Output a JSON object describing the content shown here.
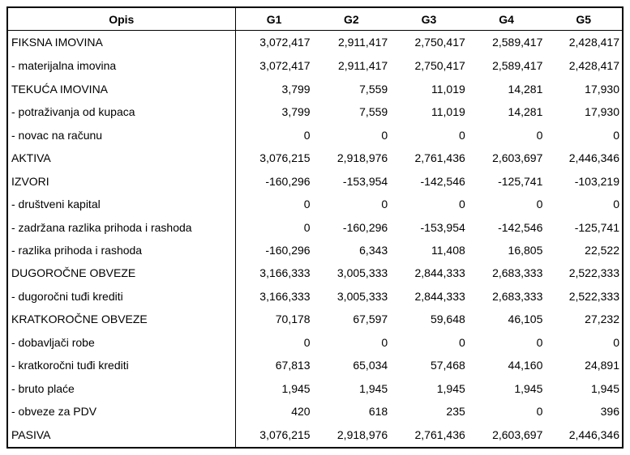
{
  "colors": {
    "background": "#ffffff",
    "border": "#000000",
    "text": "#000000"
  },
  "table": {
    "columns": [
      "Opis",
      "G1",
      "G2",
      "G3",
      "G4",
      "G5"
    ],
    "rows": [
      {
        "label": "FIKSNA IMOVINA",
        "values": [
          "3,072,417",
          "2,911,417",
          "2,750,417",
          "2,589,417",
          "2,428,417"
        ]
      },
      {
        "label": "- materijalna imovina",
        "values": [
          "3,072,417",
          "2,911,417",
          "2,750,417",
          "2,589,417",
          "2,428,417"
        ]
      },
      {
        "label": "TEKUĆA IMOVINA",
        "values": [
          "3,799",
          "7,559",
          "11,019",
          "14,281",
          "17,930"
        ]
      },
      {
        "label": "- potraživanja od kupaca",
        "values": [
          "3,799",
          "7,559",
          "11,019",
          "14,281",
          "17,930"
        ]
      },
      {
        "label": "- novac na računu",
        "values": [
          "0",
          "0",
          "0",
          "0",
          "0"
        ]
      },
      {
        "label": "AKTIVA",
        "values": [
          "3,076,215",
          "2,918,976",
          "2,761,436",
          "2,603,697",
          "2,446,346"
        ]
      },
      {
        "label": "IZVORI",
        "values": [
          "-160,296",
          "-153,954",
          "-142,546",
          "-125,741",
          "-103,219"
        ]
      },
      {
        "label": "- društveni kapital",
        "values": [
          "0",
          "0",
          "0",
          "0",
          "0"
        ]
      },
      {
        "label": "- zadržana razlika prihoda i rashoda",
        "values": [
          "0",
          "-160,296",
          "-153,954",
          "-142,546",
          "-125,741"
        ]
      },
      {
        "label": "- razlika prihoda i rashoda",
        "values": [
          "-160,296",
          "6,343",
          "11,408",
          "16,805",
          "22,522"
        ]
      },
      {
        "label": "DUGOROČNE OBVEZE",
        "values": [
          "3,166,333",
          "3,005,333",
          "2,844,333",
          "2,683,333",
          "2,522,333"
        ]
      },
      {
        "label": "- dugoročni tuđi krediti",
        "values": [
          "3,166,333",
          "3,005,333",
          "2,844,333",
          "2,683,333",
          "2,522,333"
        ]
      },
      {
        "label": "KRATKOROČNE OBVEZE",
        "values": [
          "70,178",
          "67,597",
          "59,648",
          "46,105",
          "27,232"
        ]
      },
      {
        "label": "- dobavljači robe",
        "values": [
          "0",
          "0",
          "0",
          "0",
          "0"
        ]
      },
      {
        "label": "- kratkoročni tuđi krediti",
        "values": [
          "67,813",
          "65,034",
          "57,468",
          "44,160",
          "24,891"
        ]
      },
      {
        "label": "- bruto plaće",
        "values": [
          "1,945",
          "1,945",
          "1,945",
          "1,945",
          "1,945"
        ]
      },
      {
        "label": "- obveze za PDV",
        "values": [
          "420",
          "618",
          "235",
          "0",
          "396"
        ]
      },
      {
        "label": "PASIVA",
        "values": [
          "3,076,215",
          "2,918,976",
          "2,761,436",
          "2,603,697",
          "2,446,346"
        ]
      }
    ]
  }
}
